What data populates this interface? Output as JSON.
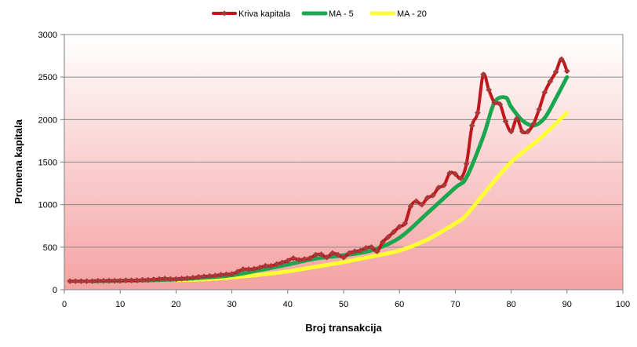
{
  "chart_data": {
    "type": "line",
    "title": "",
    "xlabel": "Broj transakcija",
    "ylabel": "Promena kapitala",
    "xlim": [
      0,
      100
    ],
    "ylim": [
      0,
      3000
    ],
    "x_ticks": [
      "0",
      "10",
      "20",
      "30",
      "40",
      "50",
      "60",
      "70",
      "80",
      "90",
      "100"
    ],
    "y_ticks": [
      "0",
      "500",
      "1000",
      "1500",
      "2000",
      "2500",
      "3000"
    ],
    "grid": "horizontal",
    "legend_position": "top",
    "background": {
      "top": "#ffffff",
      "bottom": "#f4a2a2"
    },
    "series": [
      {
        "name": "Kriva kapitala",
        "color": "#c0161c",
        "marker_color": "#a63a3a",
        "markers": true,
        "points": [
          [
            1,
            100
          ],
          [
            2,
            100
          ],
          [
            3,
            100
          ],
          [
            4,
            100
          ],
          [
            5,
            100
          ],
          [
            6,
            105
          ],
          [
            7,
            105
          ],
          [
            8,
            105
          ],
          [
            9,
            105
          ],
          [
            10,
            105
          ],
          [
            11,
            110
          ],
          [
            12,
            110
          ],
          [
            13,
            110
          ],
          [
            14,
            115
          ],
          [
            15,
            115
          ],
          [
            16,
            120
          ],
          [
            17,
            125
          ],
          [
            18,
            130
          ],
          [
            19,
            125
          ],
          [
            20,
            125
          ],
          [
            21,
            130
          ],
          [
            22,
            135
          ],
          [
            23,
            140
          ],
          [
            24,
            150
          ],
          [
            25,
            155
          ],
          [
            26,
            160
          ],
          [
            27,
            165
          ],
          [
            28,
            175
          ],
          [
            29,
            180
          ],
          [
            30,
            185
          ],
          [
            31,
            210
          ],
          [
            32,
            240
          ],
          [
            33,
            240
          ],
          [
            34,
            245
          ],
          [
            35,
            260
          ],
          [
            36,
            280
          ],
          [
            37,
            280
          ],
          [
            38,
            300
          ],
          [
            39,
            320
          ],
          [
            40,
            340
          ],
          [
            41,
            370
          ],
          [
            42,
            350
          ],
          [
            43,
            360
          ],
          [
            44,
            370
          ],
          [
            45,
            410
          ],
          [
            46,
            415
          ],
          [
            47,
            380
          ],
          [
            48,
            430
          ],
          [
            49,
            410
          ],
          [
            50,
            380
          ],
          [
            51,
            430
          ],
          [
            52,
            450
          ],
          [
            53,
            460
          ],
          [
            54,
            490
          ],
          [
            55,
            500
          ],
          [
            56,
            450
          ],
          [
            57,
            560
          ],
          [
            58,
            620
          ],
          [
            59,
            680
          ],
          [
            60,
            740
          ],
          [
            61,
            780
          ],
          [
            62,
            980
          ],
          [
            63,
            1040
          ],
          [
            64,
            1000
          ],
          [
            65,
            1080
          ],
          [
            66,
            1110
          ],
          [
            67,
            1200
          ],
          [
            68,
            1230
          ],
          [
            69,
            1370
          ],
          [
            70,
            1360
          ],
          [
            71,
            1310
          ],
          [
            72,
            1480
          ],
          [
            73,
            1930
          ],
          [
            74,
            2080
          ],
          [
            75,
            2530
          ],
          [
            76,
            2350
          ],
          [
            77,
            2200
          ],
          [
            78,
            2180
          ],
          [
            79,
            1980
          ],
          [
            80,
            1860
          ],
          [
            81,
            2010
          ],
          [
            82,
            1860
          ],
          [
            83,
            1860
          ],
          [
            84,
            1950
          ],
          [
            85,
            2120
          ],
          [
            86,
            2320
          ],
          [
            87,
            2450
          ],
          [
            88,
            2560
          ],
          [
            89,
            2710
          ],
          [
            90,
            2570
          ]
        ]
      },
      {
        "name": "MA - 5",
        "color": "#1aa74f",
        "markers": false,
        "points": [
          [
            5,
            100
          ],
          [
            10,
            104
          ],
          [
            15,
            110
          ],
          [
            20,
            122
          ],
          [
            25,
            142
          ],
          [
            30,
            170
          ],
          [
            35,
            230
          ],
          [
            40,
            296
          ],
          [
            45,
            366
          ],
          [
            50,
            405
          ],
          [
            55,
            462
          ],
          [
            60,
            610
          ],
          [
            65,
            900
          ],
          [
            70,
            1200
          ],
          [
            72,
            1320
          ],
          [
            75,
            1800
          ],
          [
            77,
            2200
          ],
          [
            79,
            2260
          ],
          [
            80,
            2150
          ],
          [
            82,
            1990
          ],
          [
            84,
            1930
          ],
          [
            86,
            2020
          ],
          [
            88,
            2250
          ],
          [
            90,
            2500
          ]
        ]
      },
      {
        "name": "MA - 20",
        "color": "#ffff33",
        "markers": false,
        "points": [
          [
            20,
            113
          ],
          [
            25,
            121
          ],
          [
            30,
            145
          ],
          [
            35,
            175
          ],
          [
            40,
            215
          ],
          [
            45,
            270
          ],
          [
            50,
            325
          ],
          [
            55,
            390
          ],
          [
            60,
            460
          ],
          [
            65,
            590
          ],
          [
            70,
            780
          ],
          [
            72,
            880
          ],
          [
            75,
            1120
          ],
          [
            80,
            1500
          ],
          [
            85,
            1770
          ],
          [
            90,
            2080
          ]
        ]
      }
    ]
  }
}
